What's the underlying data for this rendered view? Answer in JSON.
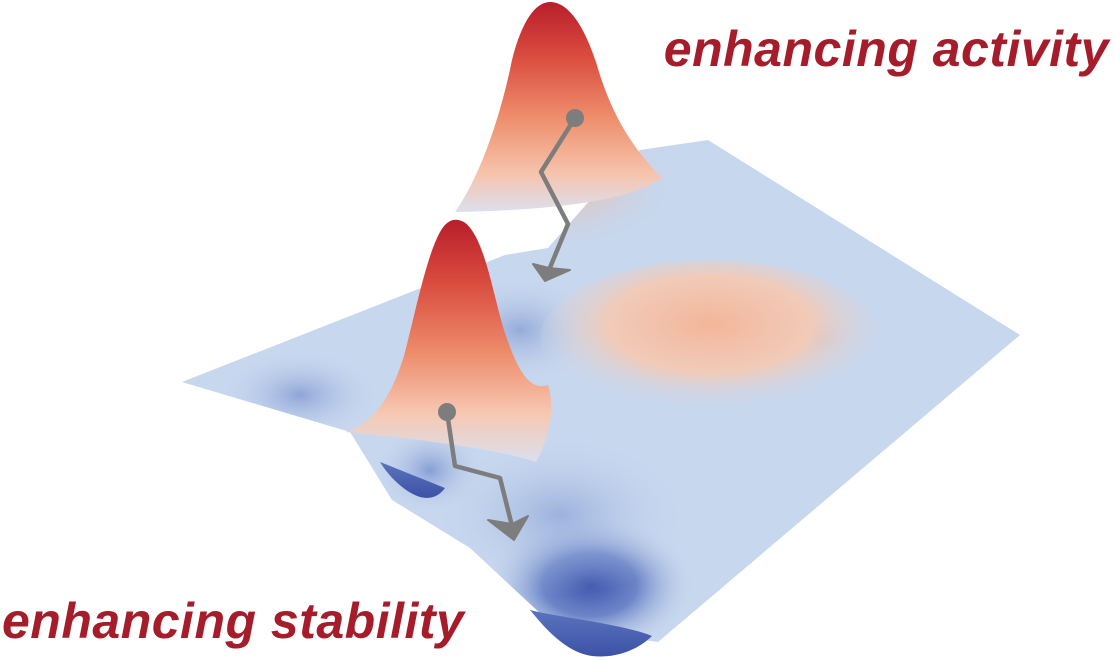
{
  "labels": {
    "activity": "enhancing activity",
    "stability": "enhancing stability"
  },
  "colors": {
    "label": "#a51d2a",
    "surface_base": "#c7d7ee",
    "peak_high": "#c62830",
    "peak_mid": "#ec8a66",
    "peak_low": "#f6c3a8",
    "valley_deep": "#3e57ad",
    "valley_mid": "#7f98d2",
    "arrow": "#7d7d7d"
  },
  "icons": {
    "arrow_top": "zigzag-arrow-down",
    "arrow_bottom": "zigzag-arrow-down"
  }
}
